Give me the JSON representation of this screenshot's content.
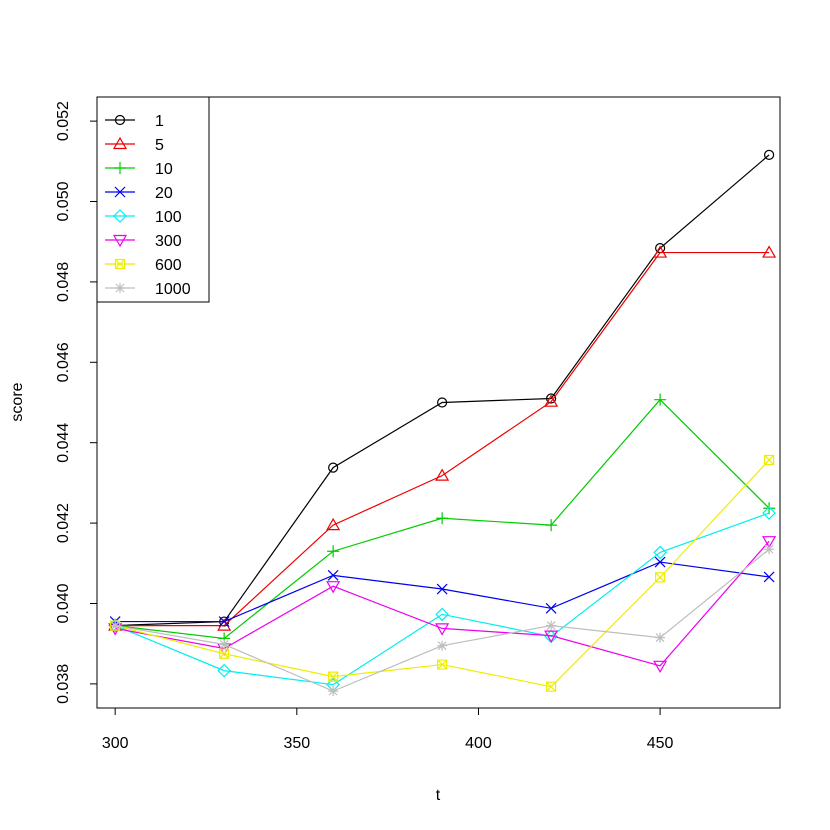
{
  "chart_data": {
    "type": "line",
    "title": "",
    "xlabel": "t",
    "ylabel": "score",
    "xlim": [
      295,
      483
    ],
    "ylim": [
      0.0374,
      0.0526
    ],
    "x_ticks": [
      300,
      350,
      400,
      450
    ],
    "x_tick_labels": [
      "300",
      "350",
      "400",
      "450"
    ],
    "y_ticks": [
      0.038,
      0.04,
      0.042,
      0.044,
      0.046,
      0.048,
      0.05,
      0.052
    ],
    "y_tick_labels": [
      "0.038",
      "0.040",
      "0.042",
      "0.044",
      "0.046",
      "0.048",
      "0.050",
      "0.052"
    ],
    "grid": false,
    "legend_position": "top-left",
    "x": [
      300,
      330,
      360,
      390,
      420,
      450,
      480
    ],
    "series": [
      {
        "name": "1",
        "color": "#000000",
        "marker": "circle",
        "values": [
          0.03945,
          0.03955,
          0.04338,
          0.045,
          0.0451,
          0.04884,
          0.05116
        ]
      },
      {
        "name": "5",
        "color": "#ee0000",
        "marker": "triangle-up",
        "values": [
          0.03945,
          0.03945,
          0.04195,
          0.04318,
          0.04502,
          0.04873,
          0.04873
        ]
      },
      {
        "name": "10",
        "color": "#00cc00",
        "marker": "plus",
        "values": [
          0.03945,
          0.03913,
          0.0413,
          0.04212,
          0.04195,
          0.04507,
          0.04237
        ]
      },
      {
        "name": "20",
        "color": "#0000ee",
        "marker": "cross",
        "values": [
          0.03955,
          0.03955,
          0.0407,
          0.04036,
          0.03988,
          0.04103,
          0.04066
        ]
      },
      {
        "name": "100",
        "color": "#00eeee",
        "marker": "diamond",
        "values": [
          0.03945,
          0.03833,
          0.03798,
          0.03973,
          0.03918,
          0.04127,
          0.04225
        ]
      },
      {
        "name": "300",
        "color": "#ee00ee",
        "marker": "triangle-down",
        "values": [
          0.03938,
          0.03888,
          0.04043,
          0.03938,
          0.0392,
          0.03845,
          0.04155
        ]
      },
      {
        "name": "600",
        "color": "#eeee00",
        "marker": "square-x",
        "values": [
          0.03945,
          0.03875,
          0.03818,
          0.03848,
          0.03793,
          0.04065,
          0.04357
        ]
      },
      {
        "name": "1000",
        "color": "#bebebe",
        "marker": "star",
        "values": [
          0.03945,
          0.03898,
          0.03782,
          0.03895,
          0.03945,
          0.03915,
          0.04135
        ]
      }
    ]
  }
}
